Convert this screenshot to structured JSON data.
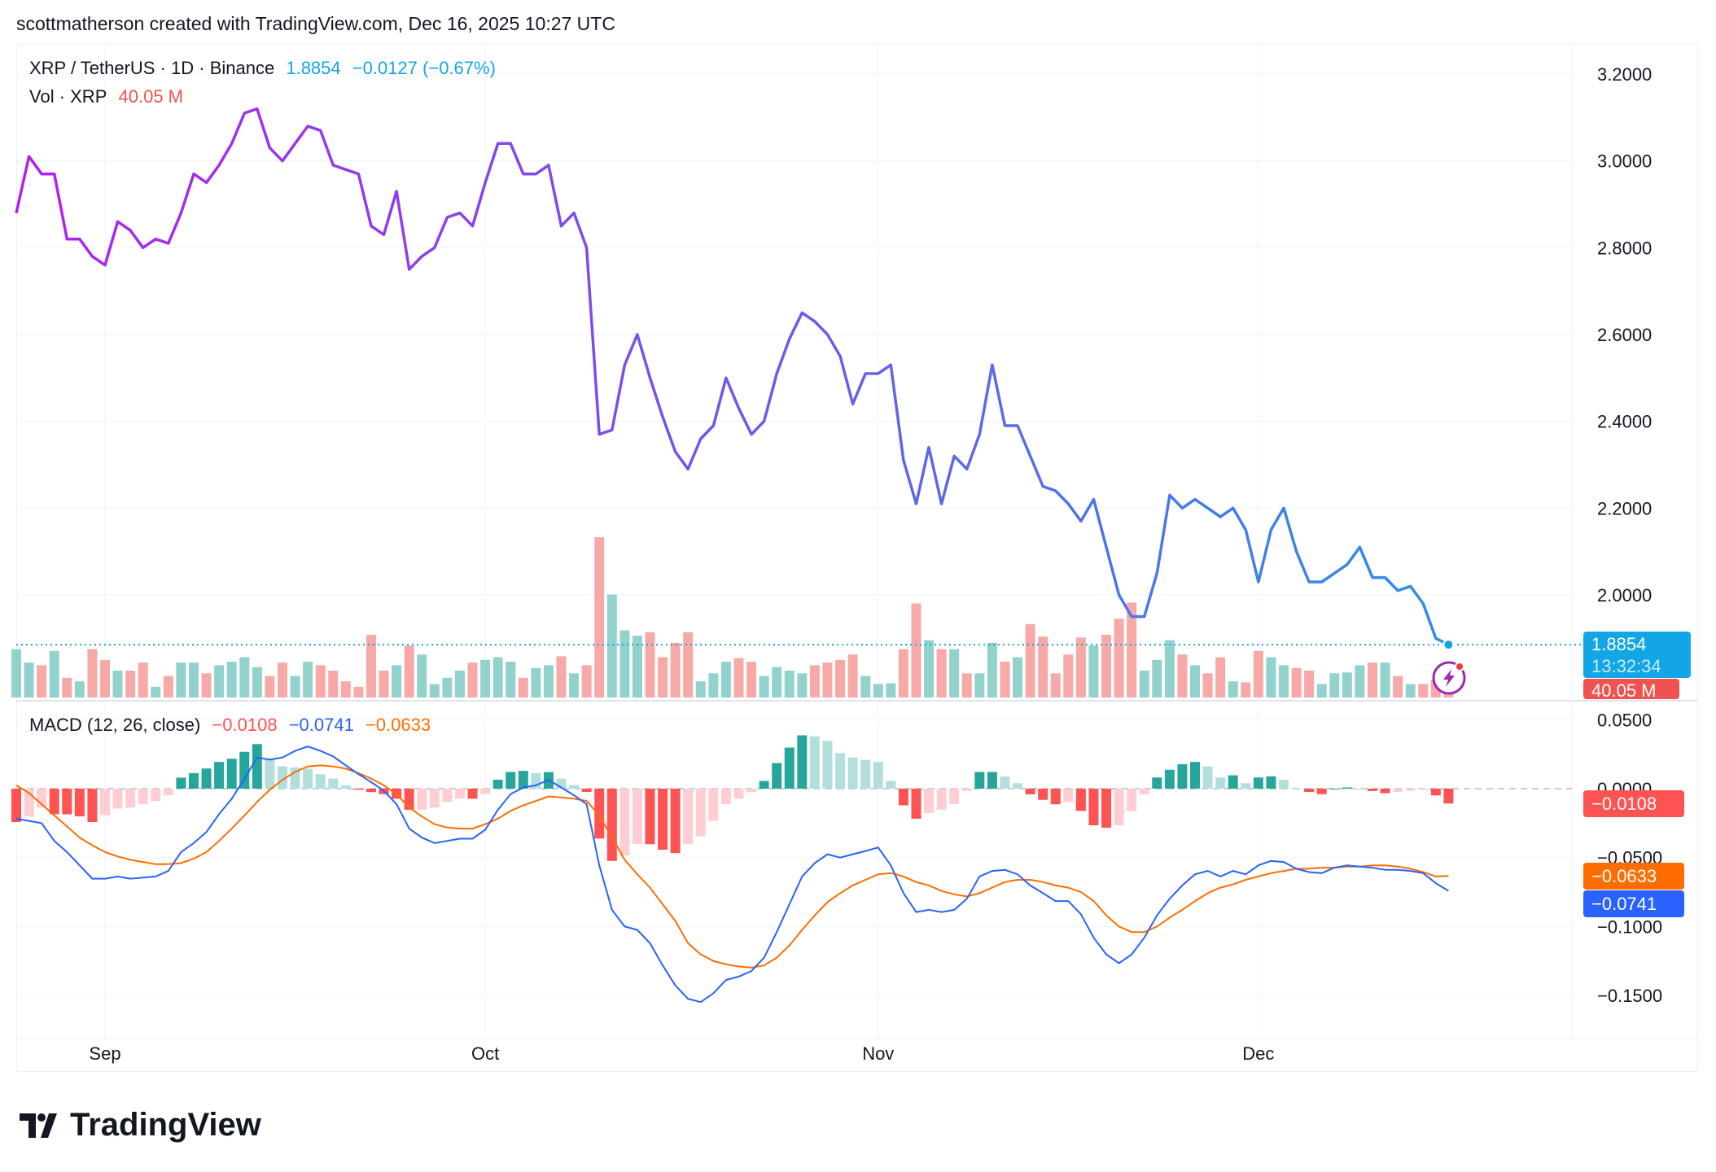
{
  "header": {
    "credit": "scottmatherson created with TradingView.com, Dec 16, 2025 10:27 UTC"
  },
  "legend": {
    "symbol": "XRP / TetherUS · 1D · Binance",
    "last": "1.8854",
    "change": "−0.0127 (−0.67%)",
    "vol_label": "Vol · XRP",
    "vol_value": "40.05 M",
    "macd_label": "MACD (12, 26, close)",
    "macd_hist": "−0.0108",
    "macd_line": "−0.0741",
    "macd_signal": "−0.0633"
  },
  "axis_labels": {
    "price_badge": "1.8854",
    "countdown": "13:32:34",
    "vol_badge": "40.05 M",
    "hist_badge": "−0.0108",
    "signal_badge": "−0.0633",
    "macd_badge": "−0.0741"
  },
  "logo": {
    "text": "TradingView"
  },
  "colors": {
    "price_start": "#b31ff0",
    "price_end": "#2e8fe8",
    "up": "#26a69a",
    "down": "#ef5350",
    "macd": "#2962ff",
    "signal": "#ff6d00",
    "last": "#12a6e6"
  },
  "chart_data": {
    "type": "line",
    "title": "XRP / TetherUS · 1D · Binance",
    "x_ticks": [
      {
        "label": "Sep",
        "index": 7
      },
      {
        "label": "Oct",
        "index": 37
      },
      {
        "label": "Nov",
        "index": 68
      },
      {
        "label": "Dec",
        "index": 98
      }
    ],
    "price": {
      "ylim": [
        1.72,
        3.25
      ],
      "ticks": [
        "3.2000",
        "3.0000",
        "2.8000",
        "2.6000",
        "2.4000",
        "2.2000",
        "2.0000"
      ],
      "tick_values": [
        3.2,
        3.0,
        2.8,
        2.6,
        2.4,
        2.2,
        2.0
      ],
      "close": [
        2.88,
        3.01,
        2.97,
        2.97,
        2.82,
        2.82,
        2.78,
        2.76,
        2.86,
        2.84,
        2.8,
        2.82,
        2.81,
        2.88,
        2.97,
        2.95,
        2.99,
        3.04,
        3.11,
        3.12,
        3.03,
        3.0,
        3.04,
        3.08,
        3.07,
        2.99,
        2.98,
        2.97,
        2.85,
        2.83,
        2.93,
        2.75,
        2.78,
        2.8,
        2.87,
        2.88,
        2.85,
        2.95,
        3.04,
        3.04,
        2.97,
        2.97,
        2.99,
        2.85,
        2.88,
        2.8,
        2.37,
        2.38,
        2.53,
        2.6,
        2.5,
        2.41,
        2.33,
        2.29,
        2.36,
        2.39,
        2.5,
        2.43,
        2.37,
        2.4,
        2.51,
        2.59,
        2.65,
        2.63,
        2.6,
        2.55,
        2.44,
        2.51,
        2.51,
        2.53,
        2.31,
        2.21,
        2.34,
        2.21,
        2.32,
        2.29,
        2.37,
        2.53,
        2.39,
        2.39,
        2.32,
        2.25,
        2.24,
        2.21,
        2.17,
        2.22,
        2.11,
        2.0,
        1.95,
        1.95,
        2.05,
        2.23,
        2.2,
        2.22,
        2.2,
        2.18,
        2.2,
        2.15,
        2.03,
        2.15,
        2.2,
        2.1,
        2.03,
        2.03,
        2.05,
        2.07,
        2.11,
        2.04,
        2.04,
        2.01,
        2.02,
        1.98,
        1.9,
        1.8854
      ]
    },
    "volume_m": [
      54,
      39,
      36,
      52,
      22,
      18,
      54,
      42,
      30,
      30,
      39,
      12,
      24,
      39,
      39,
      27,
      36,
      40,
      45,
      34,
      24,
      39,
      24,
      40,
      36,
      30,
      18,
      12,
      70,
      30,
      36,
      58,
      48,
      15,
      22,
      30,
      39,
      42,
      45,
      40,
      22,
      33,
      36,
      46,
      27,
      36,
      179,
      115,
      75,
      69,
      73,
      45,
      61,
      73,
      18,
      27,
      40,
      44,
      40,
      24,
      34,
      30,
      27,
      36,
      39,
      42,
      48,
      24,
      15,
      16,
      54,
      105,
      64,
      54,
      54,
      27,
      27,
      61,
      40,
      45,
      82,
      68,
      27,
      48,
      67,
      58,
      70,
      88,
      106,
      30,
      42,
      64,
      48,
      36,
      27,
      45,
      18,
      17,
      52,
      45,
      36,
      33,
      30,
      15,
      27,
      28,
      36,
      39,
      39,
      24,
      15,
      15,
      20,
      40.05
    ],
    "macd": {
      "ylim": [
        -0.18,
        0.065
      ],
      "ticks": [
        "0.0500",
        "0.0000",
        "−0.0500",
        "−0.1000",
        "−0.1500"
      ],
      "tick_values": [
        0.05,
        0,
        -0.05,
        -0.1,
        -0.15
      ],
      "macd_line": [
        -0.0218,
        -0.0234,
        -0.025,
        -0.0379,
        -0.046,
        -0.0556,
        -0.0653,
        -0.0653,
        -0.0637,
        -0.0653,
        -0.0645,
        -0.0637,
        -0.0597,
        -0.046,
        -0.0395,
        -0.0314,
        -0.0185,
        -0.0073,
        0.0073,
        0.0226,
        0.021,
        0.0226,
        0.0274,
        0.0306,
        0.0274,
        0.0234,
        0.0169,
        0.0105,
        0.0048,
        -0.0016,
        -0.0113,
        -0.029,
        -0.0355,
        -0.0395,
        -0.0379,
        -0.0363,
        -0.0363,
        -0.0298,
        -0.0153,
        -0.004,
        0.0008,
        0.0024,
        0.0064,
        0.0008,
        -0.0048,
        -0.0113,
        -0.0556,
        -0.0879,
        -0.1,
        -0.1024,
        -0.1121,
        -0.1282,
        -0.1427,
        -0.1524,
        -0.1548,
        -0.1484,
        -0.1387,
        -0.1363,
        -0.1323,
        -0.1226,
        -0.104,
        -0.0839,
        -0.0637,
        -0.054,
        -0.0476,
        -0.05,
        -0.0476,
        -0.0452,
        -0.0427,
        -0.0556,
        -0.0758,
        -0.0895,
        -0.0879,
        -0.0895,
        -0.0879,
        -0.0798,
        -0.0637,
        -0.0597,
        -0.0589,
        -0.0621,
        -0.0702,
        -0.0758,
        -0.0815,
        -0.0815,
        -0.0911,
        -0.1081,
        -0.1202,
        -0.1266,
        -0.1202,
        -0.1081,
        -0.0919,
        -0.0798,
        -0.0702,
        -0.0621,
        -0.0597,
        -0.0637,
        -0.0597,
        -0.0621,
        -0.0556,
        -0.0524,
        -0.0532,
        -0.0581,
        -0.0605,
        -0.0613,
        -0.0573,
        -0.0556,
        -0.0565,
        -0.0573,
        -0.0589,
        -0.0589,
        -0.0597,
        -0.0613,
        -0.0686,
        -0.0741
      ],
      "signal": [
        0.0024,
        -0.0032,
        -0.0113,
        -0.0194,
        -0.0274,
        -0.0355,
        -0.0411,
        -0.046,
        -0.0492,
        -0.0516,
        -0.0532,
        -0.0548,
        -0.0548,
        -0.054,
        -0.0508,
        -0.046,
        -0.0379,
        -0.029,
        -0.0194,
        -0.0097,
        -0.0008,
        0.0064,
        0.0121,
        0.0161,
        0.0169,
        0.0161,
        0.0145,
        0.0113,
        0.0073,
        0.0024,
        -0.004,
        -0.0137,
        -0.0202,
        -0.0258,
        -0.0282,
        -0.029,
        -0.029,
        -0.0258,
        -0.0218,
        -0.0161,
        -0.0121,
        -0.0089,
        -0.0056,
        -0.0064,
        -0.0073,
        -0.0089,
        -0.0194,
        -0.0355,
        -0.0516,
        -0.0621,
        -0.0718,
        -0.0839,
        -0.096,
        -0.1121,
        -0.1202,
        -0.125,
        -0.1274,
        -0.129,
        -0.1298,
        -0.1282,
        -0.1226,
        -0.1137,
        -0.1024,
        -0.0919,
        -0.0823,
        -0.0758,
        -0.0702,
        -0.0661,
        -0.0621,
        -0.0613,
        -0.0637,
        -0.0677,
        -0.0702,
        -0.0742,
        -0.0766,
        -0.0782,
        -0.0758,
        -0.0718,
        -0.0677,
        -0.0661,
        -0.0661,
        -0.0677,
        -0.0702,
        -0.0718,
        -0.075,
        -0.0815,
        -0.0919,
        -0.1,
        -0.104,
        -0.104,
        -0.1,
        -0.0935,
        -0.0879,
        -0.0815,
        -0.0758,
        -0.0718,
        -0.0694,
        -0.0661,
        -0.0637,
        -0.0613,
        -0.0597,
        -0.0581,
        -0.0581,
        -0.0573,
        -0.0573,
        -0.0565,
        -0.0565,
        -0.0556,
        -0.0556,
        -0.0565,
        -0.0581,
        -0.0605,
        -0.0637,
        -0.0633
      ]
    }
  }
}
